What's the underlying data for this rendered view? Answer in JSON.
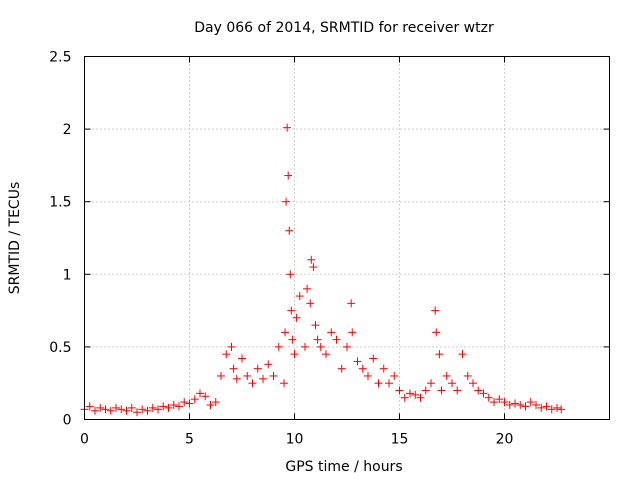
{
  "chart_data": {
    "type": "scatter",
    "title": "Day 066 of 2014, SRMTID for receiver wtzr",
    "xlabel": "GPS time / hours",
    "ylabel": "SRMTID / TECUs",
    "xlim": [
      0,
      25
    ],
    "ylim": [
      0,
      2.5
    ],
    "xticks": [
      0,
      5,
      10,
      15,
      20
    ],
    "xtick_labels": [
      "0",
      "5",
      "10",
      "15",
      "20"
    ],
    "yticks": [
      0,
      0.5,
      1,
      1.5,
      2,
      2.5
    ],
    "ytick_labels": [
      "0",
      "0.5",
      "1",
      "1.5",
      "2",
      "2.5"
    ],
    "grid": true,
    "marker": "+",
    "color": "#ff0000",
    "series": [
      {
        "name": "SRMTID",
        "x": [
          0.0,
          0.25,
          0.5,
          0.75,
          1.0,
          1.25,
          1.5,
          1.75,
          2.0,
          2.25,
          2.5,
          2.75,
          3.0,
          3.25,
          3.5,
          3.75,
          4.0,
          4.25,
          4.5,
          4.75,
          5.0,
          5.25,
          5.5,
          5.75,
          6.0,
          6.25,
          6.5,
          6.75,
          7.0,
          7.1,
          7.25,
          7.5,
          7.75,
          8.0,
          8.25,
          8.5,
          8.75,
          9.0,
          9.25,
          9.5,
          9.55,
          9.6,
          9.65,
          9.7,
          9.75,
          9.8,
          9.85,
          9.9,
          10.0,
          10.1,
          10.25,
          10.5,
          10.6,
          10.75,
          10.8,
          10.9,
          11.0,
          11.1,
          11.25,
          11.5,
          11.75,
          12.0,
          12.25,
          12.5,
          12.7,
          12.75,
          13.0,
          13.25,
          13.5,
          13.75,
          14.0,
          14.25,
          14.5,
          14.75,
          15.0,
          15.25,
          15.5,
          15.75,
          16.0,
          16.25,
          16.5,
          16.7,
          16.75,
          16.9,
          17.0,
          17.25,
          17.5,
          17.75,
          18.0,
          18.25,
          18.5,
          18.75,
          19.0,
          19.25,
          19.5,
          19.75,
          20.0,
          20.25,
          20.5,
          20.75,
          21.0,
          21.25,
          21.5,
          21.75,
          22.0,
          22.25,
          22.5,
          22.7
        ],
        "y": [
          0.07,
          0.09,
          0.06,
          0.08,
          0.07,
          0.06,
          0.08,
          0.07,
          0.06,
          0.08,
          0.05,
          0.07,
          0.06,
          0.08,
          0.07,
          0.09,
          0.08,
          0.1,
          0.09,
          0.12,
          0.11,
          0.14,
          0.18,
          0.16,
          0.1,
          0.12,
          0.3,
          0.45,
          0.5,
          0.35,
          0.28,
          0.42,
          0.3,
          0.25,
          0.35,
          0.28,
          0.38,
          0.3,
          0.5,
          0.25,
          0.6,
          1.5,
          2.01,
          1.68,
          1.3,
          1.0,
          0.75,
          0.55,
          0.45,
          0.7,
          0.85,
          0.5,
          0.9,
          0.8,
          1.1,
          1.05,
          0.65,
          0.55,
          0.5,
          0.45,
          0.6,
          0.55,
          0.35,
          0.5,
          0.8,
          0.6,
          0.4,
          0.35,
          0.3,
          0.42,
          0.25,
          0.35,
          0.25,
          0.3,
          0.2,
          0.15,
          0.18,
          0.17,
          0.15,
          0.2,
          0.25,
          0.75,
          0.6,
          0.45,
          0.2,
          0.3,
          0.25,
          0.2,
          0.45,
          0.3,
          0.25,
          0.2,
          0.18,
          0.15,
          0.12,
          0.14,
          0.12,
          0.1,
          0.11,
          0.1,
          0.09,
          0.12,
          0.1,
          0.08,
          0.09,
          0.07,
          0.08,
          0.07
        ]
      }
    ]
  }
}
